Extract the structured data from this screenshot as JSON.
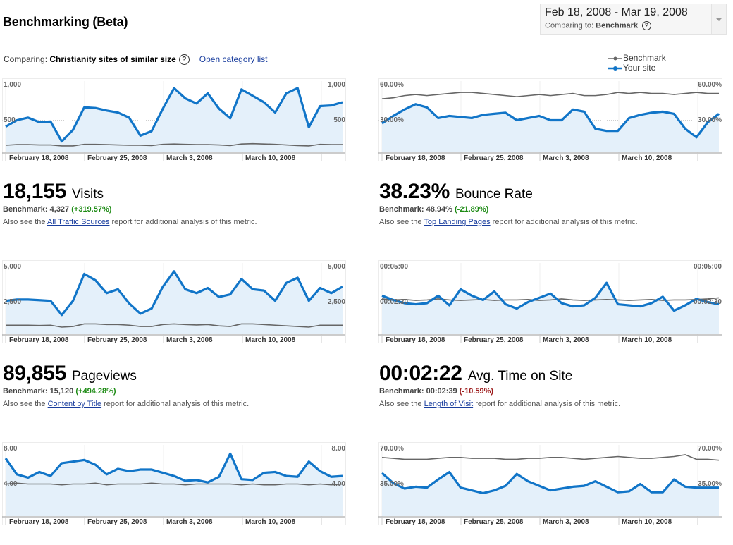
{
  "header": {
    "title": "Benchmarking (Beta)",
    "date_range": "Feb 18, 2008 - Mar 19, 2008",
    "comparing_prefix": "Comparing to:",
    "comparing_value": "Benchmark"
  },
  "comparing": {
    "prefix": "Comparing:",
    "category": "Christianity sites of similar size",
    "link": "Open category list"
  },
  "legend": {
    "benchmark": "Benchmark",
    "your_site": "Your site"
  },
  "colors": {
    "your_site": "#1175c8",
    "benchmark": "#666666",
    "fill": "#e4f0fa"
  },
  "x_labels": [
    "February 18, 2008",
    "February 25, 2008",
    "March 3, 2008",
    "March 10, 2008"
  ],
  "charts": [
    {
      "id": "visits",
      "y_top_label": "1,000",
      "y_mid_label": "500",
      "y_max": 1000,
      "site": [
        400,
        500,
        540,
        470,
        480,
        170,
        350,
        700,
        690,
        650,
        620,
        540,
        260,
        330,
        680,
        1000,
        840,
        760,
        920,
        680,
        530,
        980,
        880,
        780,
        620,
        920,
        1000,
        390,
        720,
        730,
        780
      ],
      "benchmark": [
        110,
        120,
        120,
        115,
        115,
        100,
        100,
        125,
        125,
        120,
        115,
        110,
        110,
        105,
        125,
        130,
        125,
        120,
        120,
        115,
        105,
        130,
        135,
        130,
        125,
        115,
        105,
        100,
        125,
        120,
        120
      ],
      "metric": {
        "value": "18,155",
        "name": "Visits",
        "benchmark_label": "Benchmark:",
        "benchmark_value": "4,327",
        "delta": "(+319.57%)",
        "also_prefix": "Also see the",
        "link": "All Traffic Sources",
        "also_suffix": "report for additional analysis of this metric."
      }
    },
    {
      "id": "bounce",
      "y_top_label": "60.00%",
      "y_mid_label": "30.00%",
      "y_max": 60,
      "site": [
        27,
        34,
        40,
        45,
        42,
        32,
        34,
        33,
        32,
        35,
        36,
        37,
        30,
        32,
        34,
        30,
        30,
        40,
        38,
        22,
        20,
        20,
        32,
        35,
        37,
        38,
        36,
        22,
        14,
        28,
        36
      ],
      "benchmark": [
        50,
        51,
        53,
        54,
        53,
        54,
        55,
        56,
        56,
        55,
        54,
        53,
        52,
        53,
        54,
        53,
        54,
        55,
        53,
        53,
        54,
        56,
        55,
        56,
        55,
        55,
        54,
        55,
        56,
        55,
        55
      ],
      "metric": {
        "value": "38.23%",
        "name": "Bounce Rate",
        "benchmark_label": "Benchmark:",
        "benchmark_value": "48.94%",
        "delta": "(-21.89%)",
        "also_prefix": "Also see the",
        "link": "Top Landing Pages",
        "also_suffix": "report for additional analysis of this metric."
      }
    },
    {
      "id": "pageviews",
      "y_top_label": "5,000",
      "y_mid_label": "2,500",
      "y_max": 5000,
      "site": [
        2600,
        2700,
        2700,
        2650,
        2600,
        1500,
        2600,
        4700,
        4200,
        3200,
        3500,
        2400,
        1600,
        2000,
        3700,
        4900,
        3500,
        3200,
        3600,
        2900,
        3100,
        4300,
        3500,
        3400,
        2600,
        4000,
        4400,
        2600,
        3600,
        3200,
        3700
      ],
      "benchmark": [
        700,
        700,
        700,
        680,
        700,
        550,
        600,
        800,
        800,
        750,
        750,
        700,
        600,
        600,
        750,
        800,
        750,
        720,
        750,
        650,
        600,
        800,
        800,
        750,
        700,
        650,
        600,
        550,
        700,
        700,
        700
      ],
      "metric": {
        "value": "89,855",
        "name": "Pageviews",
        "benchmark_label": "Benchmark:",
        "benchmark_value": "15,120",
        "delta": "(+494.28%)",
        "also_prefix": "Also see the",
        "link": "Content by Title",
        "also_suffix": "report for additional analysis of this metric."
      }
    },
    {
      "id": "time",
      "y_top_label": "00:05:00",
      "y_mid_label": "00:02:30",
      "y_max": 300,
      "site": [
        180,
        160,
        145,
        140,
        145,
        180,
        135,
        210,
        180,
        160,
        200,
        140,
        120,
        150,
        170,
        190,
        145,
        130,
        135,
        170,
        240,
        140,
        135,
        130,
        145,
        175,
        110,
        135,
        165,
        150,
        140
      ],
      "benchmark": [
        165,
        160,
        162,
        158,
        160,
        165,
        160,
        158,
        160,
        162,
        158,
        160,
        160,
        162,
        158,
        160,
        165,
        160,
        158,
        160,
        162,
        160,
        158,
        160,
        162,
        158,
        160,
        160,
        162,
        165,
        170
      ],
      "metric": {
        "value": "00:02:22",
        "name": "Avg. Time on Site",
        "benchmark_label": "Benchmark:",
        "benchmark_value": "00:02:39",
        "delta": "(-10.59%)",
        "also_prefix": "Also see the",
        "link": "Length of Visit",
        "also_suffix": "report for additional analysis of this metric."
      }
    },
    {
      "id": "pages_per_visit",
      "y_top_label": "8.00",
      "y_mid_label": "4.00",
      "y_max": 8,
      "site": [
        7.2,
        5.2,
        4.8,
        5.5,
        5.0,
        6.6,
        6.8,
        7.0,
        6.4,
        5.2,
        5.9,
        5.6,
        5.8,
        5.8,
        5.4,
        5.0,
        4.4,
        4.5,
        4.2,
        4.9,
        7.8,
        4.6,
        4.5,
        5.4,
        5.5,
        5.0,
        4.9,
        6.8,
        5.6,
        4.9,
        5.0
      ],
      "benchmark": [
        4.0,
        4.1,
        4.0,
        4.0,
        4.0,
        3.9,
        4.0,
        4.0,
        4.1,
        3.9,
        4.0,
        4.0,
        4.0,
        4.1,
        4.0,
        4.0,
        3.9,
        4.0,
        4.0,
        4.0,
        4.0,
        3.9,
        4.0,
        3.9,
        3.9,
        4.0,
        4.0,
        3.9,
        4.0,
        3.9,
        4.0
      ],
      "metric": null
    },
    {
      "id": "new_visits",
      "y_top_label": "70.00%",
      "y_mid_label": "35.00%",
      "y_max": 70,
      "site": [
        47,
        36,
        30,
        32,
        31,
        40,
        48,
        31,
        28,
        25,
        28,
        33,
        46,
        38,
        33,
        28,
        30,
        32,
        33,
        38,
        32,
        26,
        27,
        35,
        26,
        26,
        40,
        32,
        31,
        31,
        31
      ],
      "benchmark": [
        64,
        63,
        62,
        62,
        62,
        63,
        64,
        64,
        63,
        63,
        63,
        62,
        62,
        63,
        63,
        64,
        64,
        63,
        62,
        63,
        64,
        65,
        64,
        63,
        63,
        64,
        65,
        67,
        62,
        62,
        61
      ],
      "metric": null
    }
  ]
}
